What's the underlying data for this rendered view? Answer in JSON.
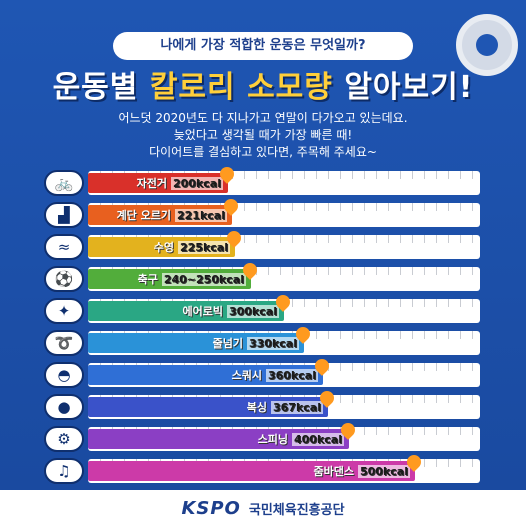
{
  "subtitle": "나에게 가장 적합한 운동은 무엇일까?",
  "title_part1": "운동별 ",
  "title_highlight": "칼로리 소모량",
  "title_part2": " 알아보기!",
  "intro_lines": [
    "어느덧 2020년도 다 지나가고 연말이 다가오고 있는데요.",
    "늦었다고 생각될 때가 가장 빠른 때!",
    "다이어트를 결심하고 있다면, 주목해 주세요~"
  ],
  "activities": [
    {
      "name": "자전거",
      "value": "200kcal",
      "level": 200,
      "color": "#d9302a",
      "icon": "bicycle-icon",
      "glyph": "🚲"
    },
    {
      "name": "계단 오르기",
      "value": "221kcal",
      "level": 221,
      "color": "#e8601f",
      "icon": "stairs-icon",
      "glyph": "▟"
    },
    {
      "name": "수영",
      "value": "225kcal",
      "level": 225,
      "color": "#e3b21e",
      "icon": "swimming-icon",
      "glyph": "≈"
    },
    {
      "name": "축구",
      "value": "240~250kcal",
      "level": 250,
      "color": "#52ad3b",
      "icon": "soccer-ball-icon",
      "glyph": "⚽"
    },
    {
      "name": "에어로빅",
      "value": "300kcal",
      "level": 300,
      "color": "#2aa784",
      "icon": "aerobics-icon",
      "glyph": "✦"
    },
    {
      "name": "줄넘기",
      "value": "330kcal",
      "level": 330,
      "color": "#2a92d8",
      "icon": "jump-rope-icon",
      "glyph": "➰"
    },
    {
      "name": "스쿼시",
      "value": "360kcal",
      "level": 360,
      "color": "#2f6fd6",
      "icon": "squash-icon",
      "glyph": "◓"
    },
    {
      "name": "복싱",
      "value": "367kcal",
      "level": 367,
      "color": "#3a52c9",
      "icon": "boxing-glove-icon",
      "glyph": "●"
    },
    {
      "name": "스피닝",
      "value": "400kcal",
      "level": 400,
      "color": "#8b3fc4",
      "icon": "spinning-bike-icon",
      "glyph": "⚙"
    },
    {
      "name": "줌바댄스",
      "value": "500kcal",
      "level": 500,
      "color": "#cc3aa8",
      "icon": "music-note-icon",
      "glyph": "♫"
    }
  ],
  "logo": "KSPO",
  "organization": "국민체육진흥공단"
}
